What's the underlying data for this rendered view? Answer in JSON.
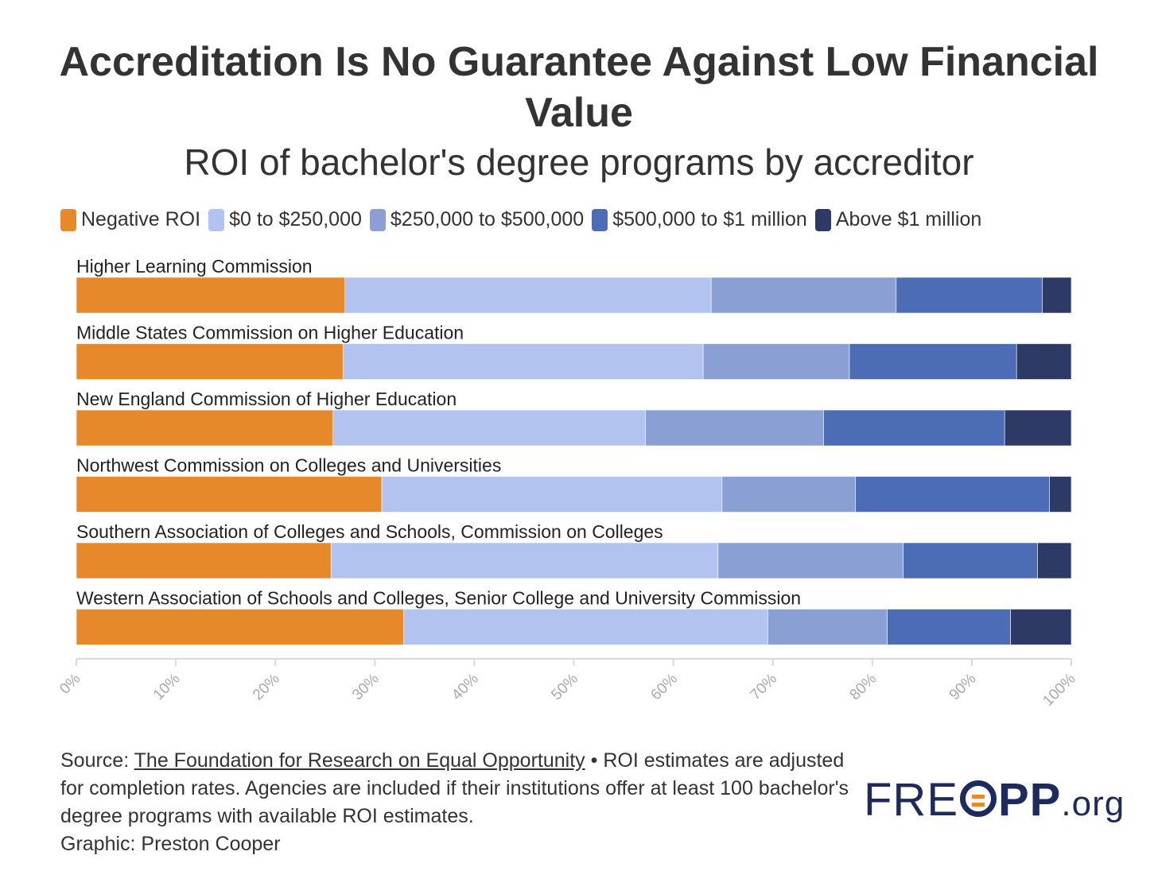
{
  "chart_data": {
    "type": "bar",
    "orientation": "horizontal",
    "stacked": true,
    "title": "Accreditation Is No Guarantee Against Low Financial Value",
    "subtitle": "ROI of bachelor's degree programs by accreditor",
    "categories": [
      "Higher Learning Commission",
      "Middle States Commission on Higher Education",
      "New England Commission of Higher Education",
      "Northwest Commission on Colleges and Universities",
      "Southern Association of Colleges and Schools, Commission on Colleges",
      "Western Association of Schools and Colleges, Senior College and University Commission"
    ],
    "series": [
      {
        "name": "Negative ROI",
        "color": "#e5892b",
        "values": [
          27.0,
          26.8,
          25.8,
          30.7,
          25.6,
          32.9
        ]
      },
      {
        "name": "$0 to $250,000",
        "color": "#b3c3f0",
        "values": [
          36.8,
          36.2,
          31.4,
          34.2,
          38.9,
          36.6
        ]
      },
      {
        "name": "$250,000 to $500,000",
        "color": "#8aa0d4",
        "values": [
          18.6,
          14.7,
          17.9,
          13.4,
          18.6,
          12.0
        ]
      },
      {
        "name": "$500,000 to $1 million",
        "color": "#4d6cb6",
        "values": [
          14.7,
          16.8,
          18.2,
          19.5,
          13.5,
          12.4
        ]
      },
      {
        "name": "Above $1 million",
        "color": "#2e3a66",
        "values": [
          2.9,
          5.5,
          6.7,
          2.2,
          3.4,
          6.1
        ]
      }
    ],
    "xlim": [
      0,
      100
    ],
    "x_ticks": [
      "0%",
      "10%",
      "20%",
      "30%",
      "40%",
      "50%",
      "60%",
      "70%",
      "80%",
      "90%",
      "100%"
    ],
    "legend_position": "top-left",
    "grid": false
  },
  "footer": {
    "source_prefix": "Source: ",
    "source_link": "The Foundation for Research on Equal Opportunity",
    "note": " • ROI estimates are adjusted for completion rates. Agencies are included if their institutions offer at least 100 bachelor's degree programs with available ROI estimates.",
    "credit": "Graphic: Preston Cooper"
  },
  "logo": {
    "part1": "FRE",
    "part2": "PP",
    "part3": ".org"
  }
}
